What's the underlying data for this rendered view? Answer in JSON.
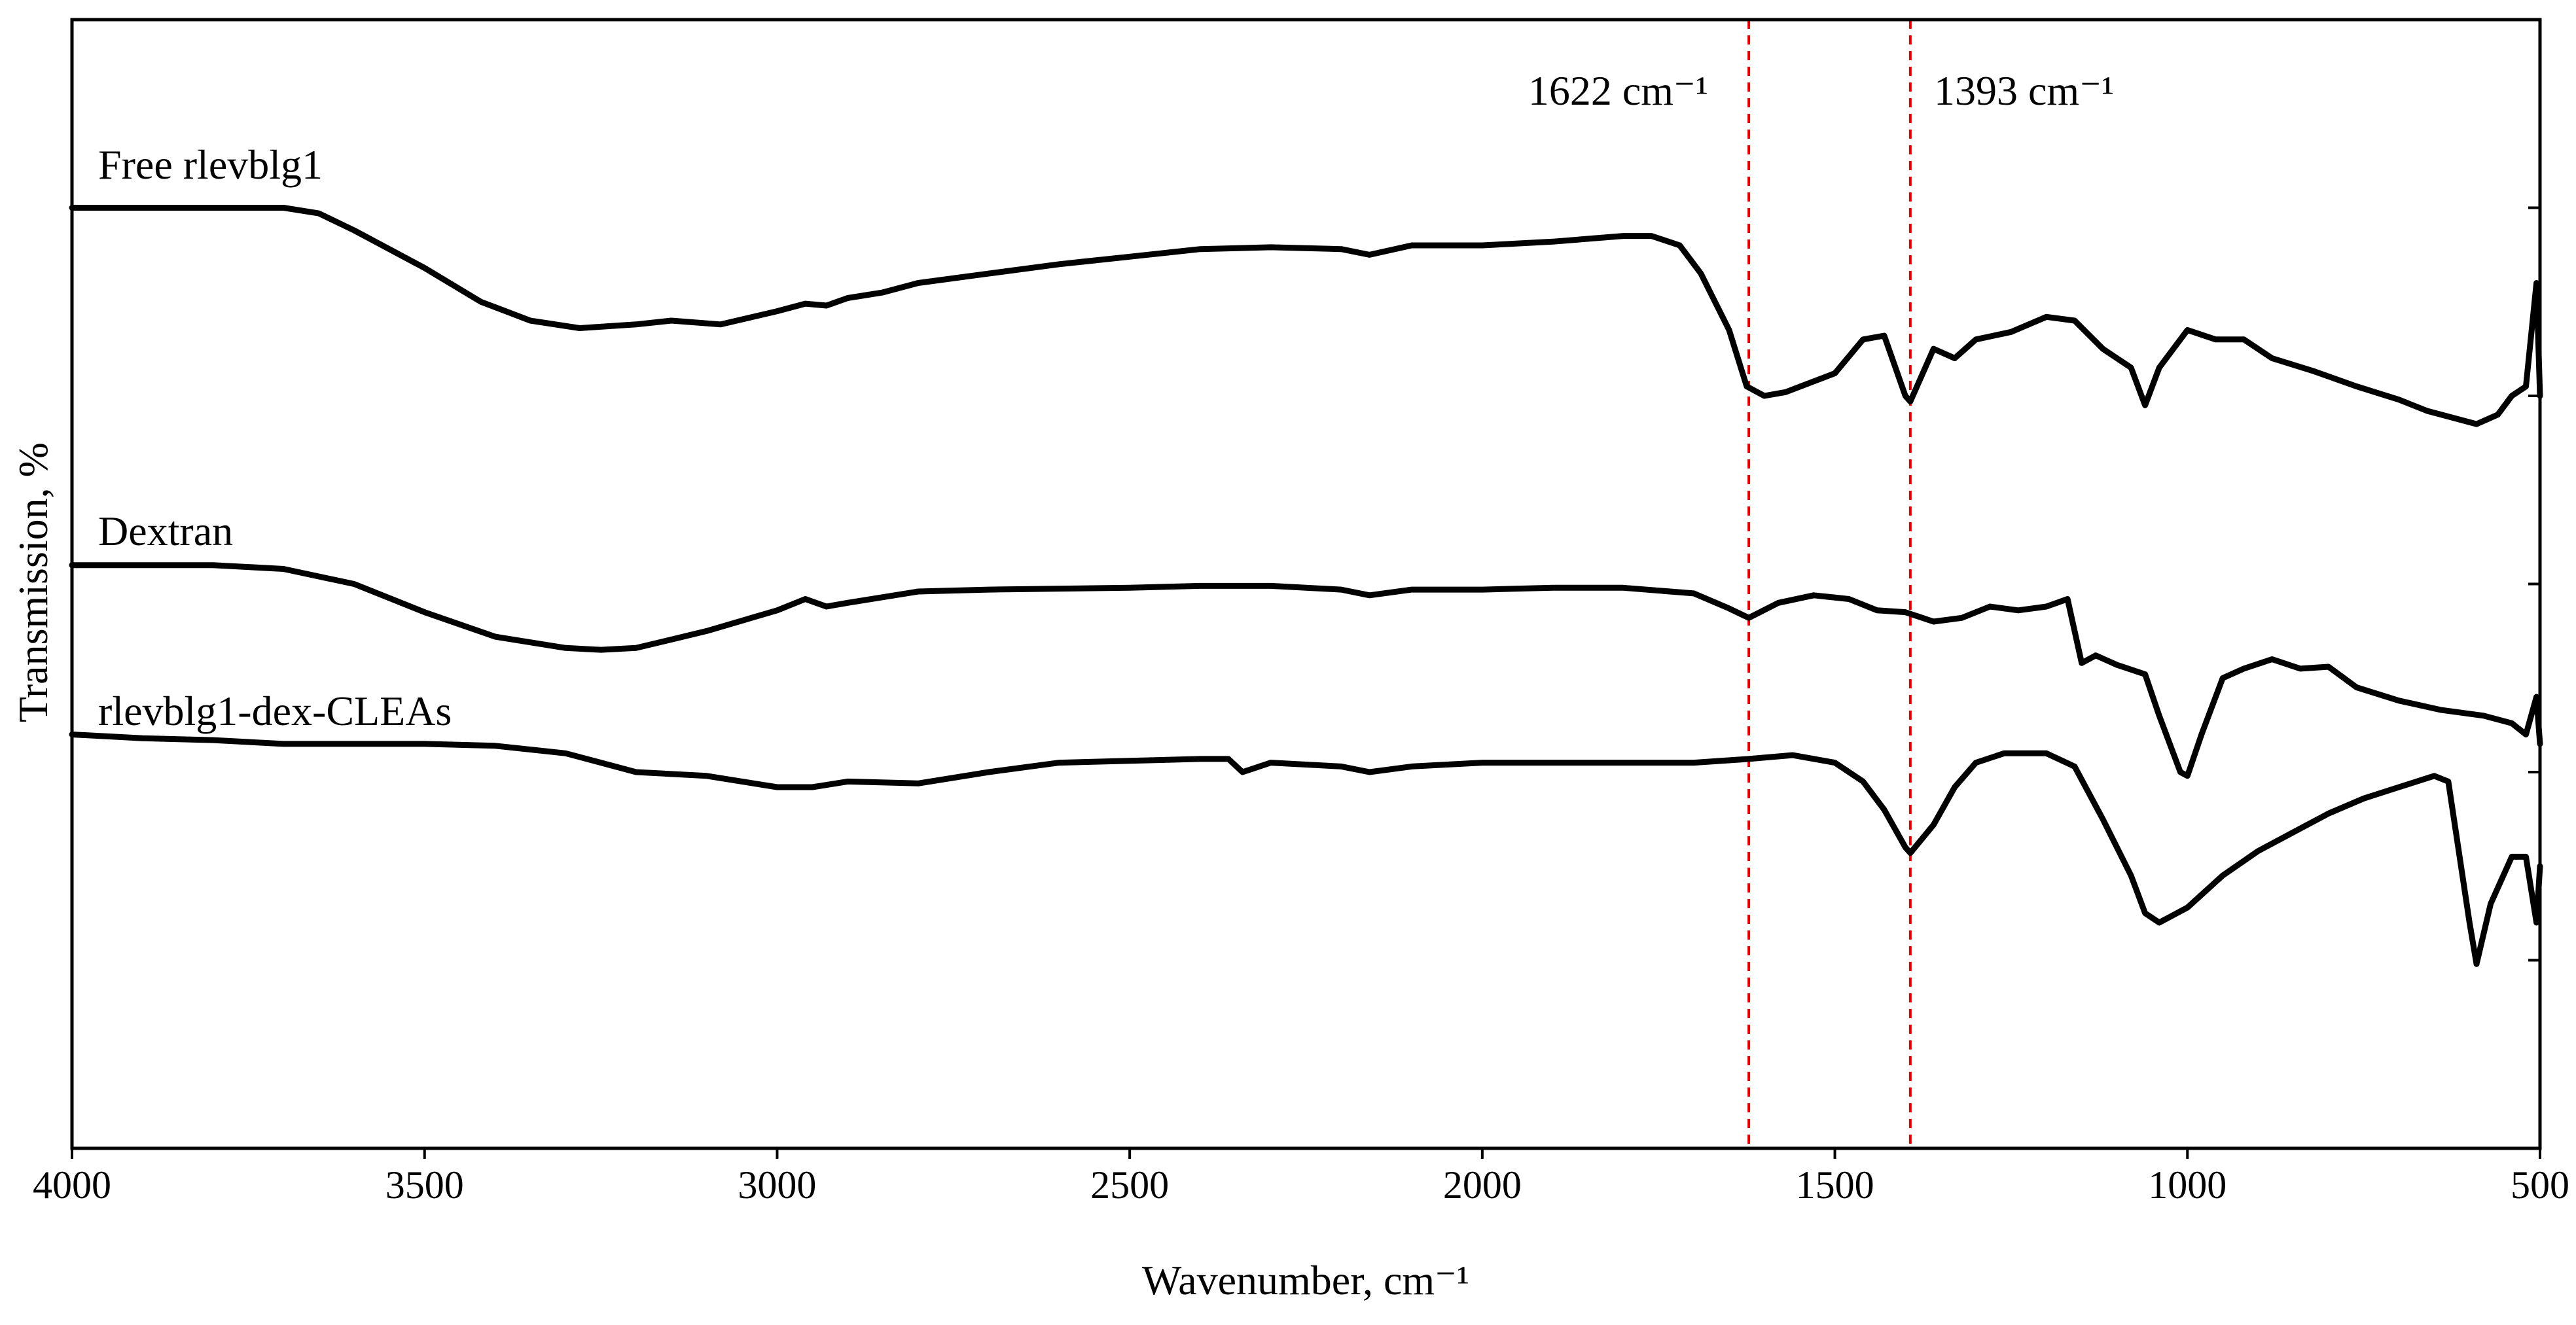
{
  "chart_data": {
    "type": "line",
    "title": "",
    "xlabel": "Wavenumber, cm⁻¹",
    "ylabel": "Transmission, %",
    "xlim": [
      4000,
      500
    ],
    "x_reversed": true,
    "ylim": [
      0,
      6
    ],
    "grid": false,
    "x_ticks": [
      4000,
      3500,
      3000,
      2500,
      2000,
      1500,
      1000,
      500
    ],
    "x_tick_labels": [
      "4000",
      "3500",
      "3000",
      "2500",
      "2000",
      "1500",
      "1000",
      "500"
    ],
    "y_ticks_right": [
      1,
      2,
      3,
      4,
      5
    ],
    "markers": [
      {
        "x": 1622,
        "label": "1622 cm⁻¹"
      },
      {
        "x": 1393,
        "label": "1393 cm⁻¹"
      }
    ],
    "series": [
      {
        "name": "Free rlevblg1",
        "points": [
          [
            4000,
            5.0
          ],
          [
            3800,
            5.0
          ],
          [
            3700,
            5.0
          ],
          [
            3650,
            4.97
          ],
          [
            3600,
            4.88
          ],
          [
            3500,
            4.68
          ],
          [
            3420,
            4.5
          ],
          [
            3350,
            4.4
          ],
          [
            3280,
            4.36
          ],
          [
            3200,
            4.38
          ],
          [
            3150,
            4.4
          ],
          [
            3080,
            4.38
          ],
          [
            3000,
            4.45
          ],
          [
            2960,
            4.49
          ],
          [
            2930,
            4.48
          ],
          [
            2900,
            4.52
          ],
          [
            2850,
            4.55
          ],
          [
            2800,
            4.6
          ],
          [
            2700,
            4.65
          ],
          [
            2600,
            4.7
          ],
          [
            2500,
            4.74
          ],
          [
            2400,
            4.78
          ],
          [
            2300,
            4.79
          ],
          [
            2200,
            4.78
          ],
          [
            2160,
            4.75
          ],
          [
            2100,
            4.8
          ],
          [
            2000,
            4.8
          ],
          [
            1900,
            4.82
          ],
          [
            1800,
            4.85
          ],
          [
            1760,
            4.85
          ],
          [
            1720,
            4.8
          ],
          [
            1690,
            4.65
          ],
          [
            1650,
            4.35
          ],
          [
            1625,
            4.05
          ],
          [
            1600,
            4.0
          ],
          [
            1570,
            4.02
          ],
          [
            1500,
            4.12
          ],
          [
            1460,
            4.3
          ],
          [
            1430,
            4.32
          ],
          [
            1400,
            4.0
          ],
          [
            1393,
            3.97
          ],
          [
            1360,
            4.25
          ],
          [
            1330,
            4.2
          ],
          [
            1300,
            4.3
          ],
          [
            1250,
            4.34
          ],
          [
            1200,
            4.42
          ],
          [
            1160,
            4.4
          ],
          [
            1120,
            4.25
          ],
          [
            1080,
            4.15
          ],
          [
            1060,
            3.95
          ],
          [
            1040,
            4.15
          ],
          [
            1000,
            4.35
          ],
          [
            960,
            4.3
          ],
          [
            920,
            4.3
          ],
          [
            880,
            4.2
          ],
          [
            820,
            4.13
          ],
          [
            760,
            4.05
          ],
          [
            700,
            3.98
          ],
          [
            660,
            3.92
          ],
          [
            620,
            3.88
          ],
          [
            590,
            3.85
          ],
          [
            560,
            3.9
          ],
          [
            540,
            4.0
          ],
          [
            520,
            4.05
          ],
          [
            505,
            4.6
          ],
          [
            500,
            4.0
          ]
        ]
      },
      {
        "name": "Dextran",
        "points": [
          [
            4000,
            3.1
          ],
          [
            3800,
            3.1
          ],
          [
            3700,
            3.08
          ],
          [
            3600,
            3.0
          ],
          [
            3500,
            2.85
          ],
          [
            3400,
            2.72
          ],
          [
            3300,
            2.66
          ],
          [
            3250,
            2.65
          ],
          [
            3200,
            2.66
          ],
          [
            3100,
            2.75
          ],
          [
            3000,
            2.86
          ],
          [
            2960,
            2.92
          ],
          [
            2930,
            2.88
          ],
          [
            2900,
            2.9
          ],
          [
            2800,
            2.96
          ],
          [
            2700,
            2.97
          ],
          [
            2500,
            2.98
          ],
          [
            2400,
            2.99
          ],
          [
            2300,
            2.99
          ],
          [
            2200,
            2.97
          ],
          [
            2160,
            2.94
          ],
          [
            2100,
            2.97
          ],
          [
            2000,
            2.97
          ],
          [
            1900,
            2.98
          ],
          [
            1800,
            2.98
          ],
          [
            1700,
            2.95
          ],
          [
            1650,
            2.87
          ],
          [
            1622,
            2.82
          ],
          [
            1580,
            2.9
          ],
          [
            1530,
            2.94
          ],
          [
            1480,
            2.92
          ],
          [
            1440,
            2.86
          ],
          [
            1400,
            2.85
          ],
          [
            1360,
            2.8
          ],
          [
            1320,
            2.82
          ],
          [
            1280,
            2.88
          ],
          [
            1240,
            2.86
          ],
          [
            1200,
            2.88
          ],
          [
            1170,
            2.92
          ],
          [
            1150,
            2.58
          ],
          [
            1130,
            2.62
          ],
          [
            1100,
            2.57
          ],
          [
            1060,
            2.52
          ],
          [
            1040,
            2.3
          ],
          [
            1010,
            2.0
          ],
          [
            1000,
            1.98
          ],
          [
            980,
            2.2
          ],
          [
            950,
            2.5
          ],
          [
            920,
            2.55
          ],
          [
            880,
            2.6
          ],
          [
            840,
            2.55
          ],
          [
            800,
            2.56
          ],
          [
            760,
            2.45
          ],
          [
            700,
            2.38
          ],
          [
            640,
            2.33
          ],
          [
            580,
            2.3
          ],
          [
            540,
            2.26
          ],
          [
            520,
            2.2
          ],
          [
            505,
            2.4
          ],
          [
            500,
            2.15
          ]
        ]
      },
      {
        "name": "rlevblg1-dex-CLEAs",
        "points": [
          [
            4000,
            2.2
          ],
          [
            3900,
            2.18
          ],
          [
            3800,
            2.17
          ],
          [
            3700,
            2.15
          ],
          [
            3600,
            2.15
          ],
          [
            3500,
            2.15
          ],
          [
            3400,
            2.14
          ],
          [
            3300,
            2.1
          ],
          [
            3250,
            2.05
          ],
          [
            3200,
            2.0
          ],
          [
            3100,
            1.98
          ],
          [
            3000,
            1.92
          ],
          [
            2950,
            1.92
          ],
          [
            2900,
            1.95
          ],
          [
            2800,
            1.94
          ],
          [
            2700,
            2.0
          ],
          [
            2600,
            2.05
          ],
          [
            2500,
            2.06
          ],
          [
            2400,
            2.07
          ],
          [
            2360,
            2.07
          ],
          [
            2340,
            2.0
          ],
          [
            2300,
            2.05
          ],
          [
            2200,
            2.03
          ],
          [
            2160,
            2.0
          ],
          [
            2100,
            2.03
          ],
          [
            2000,
            2.05
          ],
          [
            1900,
            2.05
          ],
          [
            1800,
            2.05
          ],
          [
            1700,
            2.05
          ],
          [
            1622,
            2.07
          ],
          [
            1560,
            2.09
          ],
          [
            1500,
            2.05
          ],
          [
            1460,
            1.95
          ],
          [
            1430,
            1.8
          ],
          [
            1400,
            1.6
          ],
          [
            1393,
            1.57
          ],
          [
            1360,
            1.72
          ],
          [
            1330,
            1.92
          ],
          [
            1300,
            2.05
          ],
          [
            1260,
            2.1
          ],
          [
            1200,
            2.1
          ],
          [
            1160,
            2.03
          ],
          [
            1120,
            1.75
          ],
          [
            1080,
            1.45
          ],
          [
            1060,
            1.25
          ],
          [
            1040,
            1.2
          ],
          [
            1000,
            1.28
          ],
          [
            950,
            1.45
          ],
          [
            900,
            1.58
          ],
          [
            850,
            1.68
          ],
          [
            800,
            1.78
          ],
          [
            750,
            1.86
          ],
          [
            700,
            1.92
          ],
          [
            650,
            1.98
          ],
          [
            630,
            1.95
          ],
          [
            600,
            1.2
          ],
          [
            590,
            0.98
          ],
          [
            570,
            1.3
          ],
          [
            540,
            1.55
          ],
          [
            520,
            1.55
          ],
          [
            505,
            1.2
          ],
          [
            500,
            1.5
          ]
        ]
      }
    ]
  }
}
